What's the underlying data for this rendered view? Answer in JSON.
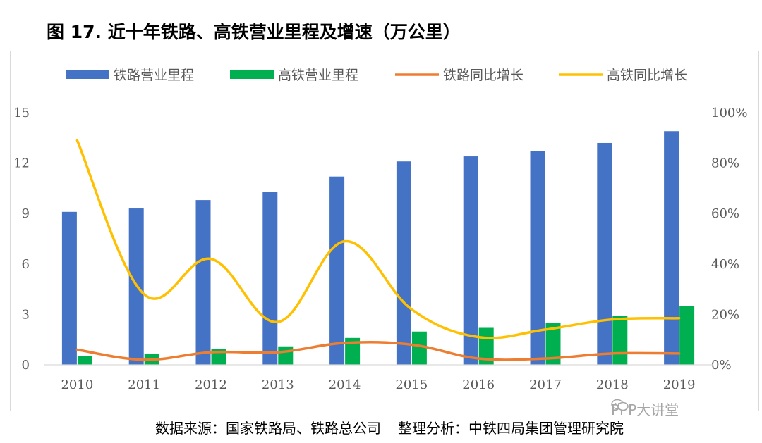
{
  "title": "图 17. 近十年铁路、高铁营业里程及增速（万公里）",
  "source": {
    "left": "数据来源：国家铁路局、铁路总公司",
    "right": "整理分析：中铁四局集团管理研究院"
  },
  "watermark": {
    "text": "PPP大讲堂",
    "icon": "wechat-icon"
  },
  "chart_data": {
    "type": "bar",
    "categories": [
      "2010",
      "2011",
      "2012",
      "2013",
      "2014",
      "2015",
      "2016",
      "2017",
      "2018",
      "2019"
    ],
    "series": [
      {
        "name": "铁路营业里程",
        "kind": "bar",
        "axis": "left",
        "color": "#4472C4",
        "values": [
          9.1,
          9.3,
          9.8,
          10.3,
          11.2,
          12.1,
          12.4,
          12.7,
          13.2,
          13.9
        ]
      },
      {
        "name": "高铁营业里程",
        "kind": "bar",
        "axis": "left",
        "color": "#00B050",
        "values": [
          0.51,
          0.66,
          0.94,
          1.1,
          1.6,
          1.98,
          2.2,
          2.5,
          2.9,
          3.5
        ]
      },
      {
        "name": "铁路同比增长",
        "kind": "line",
        "axis": "right",
        "color": "#ED7D31",
        "values": [
          0.06,
          0.02,
          0.05,
          0.05,
          0.087,
          0.08,
          0.025,
          0.025,
          0.045,
          0.045
        ]
      },
      {
        "name": "高铁同比增长",
        "kind": "line",
        "axis": "right",
        "color": "#FFC000",
        "values": [
          0.89,
          0.28,
          0.42,
          0.17,
          0.49,
          0.22,
          0.11,
          0.14,
          0.18,
          0.185
        ]
      }
    ],
    "y_left": {
      "min": 0,
      "max": 15,
      "ticks": [
        "0",
        "3",
        "6",
        "9",
        "12",
        "15"
      ]
    },
    "y_right": {
      "min": 0,
      "max": 1,
      "ticks": [
        "0%",
        "20%",
        "40%",
        "60%",
        "80%",
        "100%"
      ]
    },
    "legend_position": "top",
    "grid": false
  }
}
